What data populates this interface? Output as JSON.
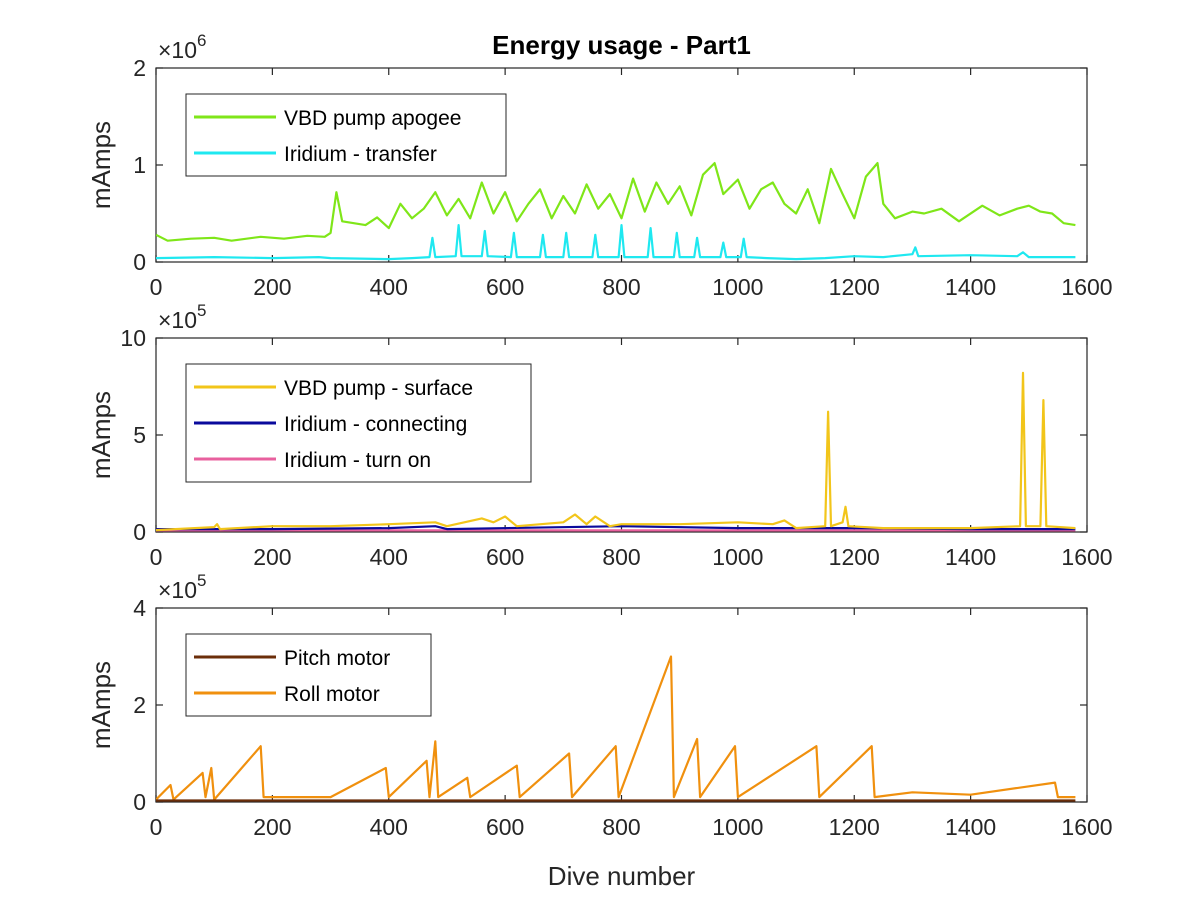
{
  "chart_data": [
    {
      "type": "line",
      "title": "Energy usage - Part1",
      "xlabel": "",
      "ylabel": "mAmps",
      "exponent_base": "×10",
      "exponent_power": "6",
      "scale": 1000000,
      "xlim": [
        0,
        1600
      ],
      "ylim": [
        0,
        2
      ],
      "xticks": [
        0,
        200,
        400,
        600,
        800,
        1000,
        1200,
        1400,
        1600
      ],
      "yticks": [
        0,
        1,
        2
      ],
      "legend_position": "top-left",
      "series": [
        {
          "name": "VBD pump apogee",
          "color": "#7FE619",
          "points": [
            [
              0,
              0.28
            ],
            [
              20,
              0.22
            ],
            [
              60,
              0.24
            ],
            [
              100,
              0.25
            ],
            [
              130,
              0.22
            ],
            [
              180,
              0.26
            ],
            [
              220,
              0.24
            ],
            [
              260,
              0.27
            ],
            [
              290,
              0.26
            ],
            [
              300,
              0.3
            ],
            [
              310,
              0.72
            ],
            [
              320,
              0.42
            ],
            [
              360,
              0.38
            ],
            [
              380,
              0.46
            ],
            [
              400,
              0.35
            ],
            [
              420,
              0.6
            ],
            [
              440,
              0.45
            ],
            [
              460,
              0.55
            ],
            [
              480,
              0.72
            ],
            [
              500,
              0.48
            ],
            [
              520,
              0.65
            ],
            [
              540,
              0.45
            ],
            [
              560,
              0.82
            ],
            [
              580,
              0.5
            ],
            [
              600,
              0.72
            ],
            [
              620,
              0.42
            ],
            [
              640,
              0.6
            ],
            [
              660,
              0.75
            ],
            [
              680,
              0.45
            ],
            [
              700,
              0.68
            ],
            [
              720,
              0.5
            ],
            [
              740,
              0.8
            ],
            [
              760,
              0.55
            ],
            [
              780,
              0.7
            ],
            [
              800,
              0.45
            ],
            [
              820,
              0.86
            ],
            [
              840,
              0.52
            ],
            [
              860,
              0.82
            ],
            [
              880,
              0.6
            ],
            [
              900,
              0.78
            ],
            [
              920,
              0.48
            ],
            [
              940,
              0.9
            ],
            [
              960,
              1.02
            ],
            [
              975,
              0.7
            ],
            [
              1000,
              0.85
            ],
            [
              1020,
              0.55
            ],
            [
              1040,
              0.75
            ],
            [
              1060,
              0.82
            ],
            [
              1080,
              0.6
            ],
            [
              1100,
              0.5
            ],
            [
              1120,
              0.75
            ],
            [
              1140,
              0.4
            ],
            [
              1160,
              0.96
            ],
            [
              1180,
              0.7
            ],
            [
              1200,
              0.45
            ],
            [
              1220,
              0.88
            ],
            [
              1240,
              1.02
            ],
            [
              1250,
              0.6
            ],
            [
              1270,
              0.45
            ],
            [
              1300,
              0.52
            ],
            [
              1320,
              0.5
            ],
            [
              1350,
              0.55
            ],
            [
              1380,
              0.42
            ],
            [
              1420,
              0.58
            ],
            [
              1450,
              0.48
            ],
            [
              1480,
              0.55
            ],
            [
              1500,
              0.58
            ],
            [
              1520,
              0.52
            ],
            [
              1540,
              0.5
            ],
            [
              1560,
              0.4
            ],
            [
              1580,
              0.38
            ]
          ]
        },
        {
          "name": "Iridium - transfer",
          "color": "#1FE8F0",
          "points": [
            [
              0,
              0.04
            ],
            [
              100,
              0.05
            ],
            [
              200,
              0.04
            ],
            [
              280,
              0.05
            ],
            [
              300,
              0.04
            ],
            [
              400,
              0.03
            ],
            [
              440,
              0.04
            ],
            [
              470,
              0.05
            ],
            [
              475,
              0.25
            ],
            [
              480,
              0.05
            ],
            [
              515,
              0.06
            ],
            [
              520,
              0.38
            ],
            [
              525,
              0.06
            ],
            [
              560,
              0.06
            ],
            [
              565,
              0.32
            ],
            [
              570,
              0.06
            ],
            [
              610,
              0.05
            ],
            [
              615,
              0.3
            ],
            [
              620,
              0.05
            ],
            [
              660,
              0.05
            ],
            [
              665,
              0.28
            ],
            [
              670,
              0.05
            ],
            [
              700,
              0.05
            ],
            [
              705,
              0.3
            ],
            [
              710,
              0.05
            ],
            [
              750,
              0.05
            ],
            [
              755,
              0.28
            ],
            [
              760,
              0.05
            ],
            [
              795,
              0.05
            ],
            [
              800,
              0.38
            ],
            [
              805,
              0.05
            ],
            [
              845,
              0.05
            ],
            [
              850,
              0.35
            ],
            [
              855,
              0.05
            ],
            [
              890,
              0.05
            ],
            [
              895,
              0.3
            ],
            [
              900,
              0.05
            ],
            [
              925,
              0.05
            ],
            [
              930,
              0.25
            ],
            [
              935,
              0.05
            ],
            [
              970,
              0.05
            ],
            [
              975,
              0.2
            ],
            [
              980,
              0.05
            ],
            [
              1005,
              0.05
            ],
            [
              1010,
              0.24
            ],
            [
              1015,
              0.05
            ],
            [
              1050,
              0.04
            ],
            [
              1100,
              0.03
            ],
            [
              1150,
              0.04
            ],
            [
              1200,
              0.06
            ],
            [
              1250,
              0.05
            ],
            [
              1300,
              0.08
            ],
            [
              1305,
              0.15
            ],
            [
              1310,
              0.06
            ],
            [
              1400,
              0.07
            ],
            [
              1480,
              0.06
            ],
            [
              1490,
              0.1
            ],
            [
              1500,
              0.05
            ],
            [
              1580,
              0.05
            ]
          ]
        }
      ]
    },
    {
      "type": "line",
      "title": "",
      "xlabel": "",
      "ylabel": "mAmps",
      "exponent_base": "×10",
      "exponent_power": "5",
      "scale": 100000,
      "xlim": [
        0,
        1600
      ],
      "ylim": [
        0,
        10
      ],
      "xticks": [
        0,
        200,
        400,
        600,
        800,
        1000,
        1200,
        1400,
        1600
      ],
      "yticks": [
        0,
        5,
        10
      ],
      "legend_position": "top-left",
      "series": [
        {
          "name": "VBD pump - surface",
          "color": "#F2C51A",
          "points": [
            [
              0,
              0.1
            ],
            [
              100,
              0.25
            ],
            [
              105,
              0.4
            ],
            [
              110,
              0.15
            ],
            [
              200,
              0.3
            ],
            [
              300,
              0.3
            ],
            [
              400,
              0.4
            ],
            [
              480,
              0.5
            ],
            [
              500,
              0.3
            ],
            [
              560,
              0.7
            ],
            [
              580,
              0.5
            ],
            [
              600,
              0.8
            ],
            [
              620,
              0.3
            ],
            [
              700,
              0.5
            ],
            [
              720,
              0.9
            ],
            [
              740,
              0.4
            ],
            [
              755,
              0.8
            ],
            [
              780,
              0.3
            ],
            [
              800,
              0.4
            ],
            [
              900,
              0.4
            ],
            [
              1000,
              0.5
            ],
            [
              1060,
              0.4
            ],
            [
              1080,
              0.6
            ],
            [
              1100,
              0.2
            ],
            [
              1150,
              0.3
            ],
            [
              1155,
              6.2
            ],
            [
              1160,
              0.3
            ],
            [
              1180,
              0.5
            ],
            [
              1185,
              1.3
            ],
            [
              1190,
              0.3
            ],
            [
              1250,
              0.2
            ],
            [
              1300,
              0.2
            ],
            [
              1400,
              0.2
            ],
            [
              1485,
              0.3
            ],
            [
              1490,
              8.2
            ],
            [
              1495,
              0.3
            ],
            [
              1520,
              0.3
            ],
            [
              1525,
              6.8
            ],
            [
              1530,
              0.3
            ],
            [
              1580,
              0.2
            ]
          ]
        },
        {
          "name": "Iridium - connecting",
          "color": "#0A0A9C",
          "points": [
            [
              0,
              0.15
            ],
            [
              200,
              0.15
            ],
            [
              400,
              0.2
            ],
            [
              480,
              0.3
            ],
            [
              500,
              0.15
            ],
            [
              800,
              0.3
            ],
            [
              1000,
              0.2
            ],
            [
              1200,
              0.2
            ],
            [
              1400,
              0.15
            ],
            [
              1580,
              0.15
            ]
          ]
        },
        {
          "name": "Iridium - turn on",
          "color": "#E8609E",
          "points": [
            [
              0,
              0.08
            ],
            [
              400,
              0.08
            ],
            [
              800,
              0.08
            ],
            [
              1200,
              0.08
            ],
            [
              1580,
              0.08
            ]
          ]
        }
      ]
    },
    {
      "type": "line",
      "title": "",
      "xlabel": "Dive number",
      "ylabel": "mAmps",
      "exponent_base": "×10",
      "exponent_power": "5",
      "scale": 100000,
      "xlim": [
        0,
        1600
      ],
      "ylim": [
        0,
        4
      ],
      "xticks": [
        0,
        200,
        400,
        600,
        800,
        1000,
        1200,
        1400,
        1600
      ],
      "yticks": [
        0,
        2,
        4
      ],
      "legend_position": "top-left",
      "series": [
        {
          "name": "Pitch motor",
          "color": "#6B2E0A",
          "points": [
            [
              0,
              0.03
            ],
            [
              400,
              0.03
            ],
            [
              800,
              0.03
            ],
            [
              1200,
              0.03
            ],
            [
              1580,
              0.03
            ]
          ]
        },
        {
          "name": "Roll motor",
          "color": "#F0900E",
          "points": [
            [
              0,
              0.05
            ],
            [
              25,
              0.35
            ],
            [
              30,
              0.05
            ],
            [
              80,
              0.6
            ],
            [
              85,
              0.1
            ],
            [
              95,
              0.7
            ],
            [
              100,
              0.05
            ],
            [
              180,
              1.15
            ],
            [
              185,
              0.1
            ],
            [
              300,
              0.1
            ],
            [
              395,
              0.7
            ],
            [
              400,
              0.1
            ],
            [
              465,
              0.85
            ],
            [
              470,
              0.1
            ],
            [
              480,
              1.25
            ],
            [
              485,
              0.1
            ],
            [
              535,
              0.5
            ],
            [
              540,
              0.1
            ],
            [
              620,
              0.75
            ],
            [
              625,
              0.1
            ],
            [
              710,
              1.0
            ],
            [
              715,
              0.1
            ],
            [
              790,
              1.15
            ],
            [
              795,
              0.1
            ],
            [
              885,
              3.0
            ],
            [
              890,
              0.1
            ],
            [
              930,
              1.3
            ],
            [
              935,
              0.1
            ],
            [
              995,
              1.15
            ],
            [
              1000,
              0.1
            ],
            [
              1135,
              1.15
            ],
            [
              1140,
              0.1
            ],
            [
              1230,
              1.15
            ],
            [
              1235,
              0.1
            ],
            [
              1300,
              0.2
            ],
            [
              1400,
              0.15
            ],
            [
              1545,
              0.4
            ],
            [
              1550,
              0.1
            ],
            [
              1580,
              0.1
            ]
          ]
        }
      ]
    }
  ]
}
